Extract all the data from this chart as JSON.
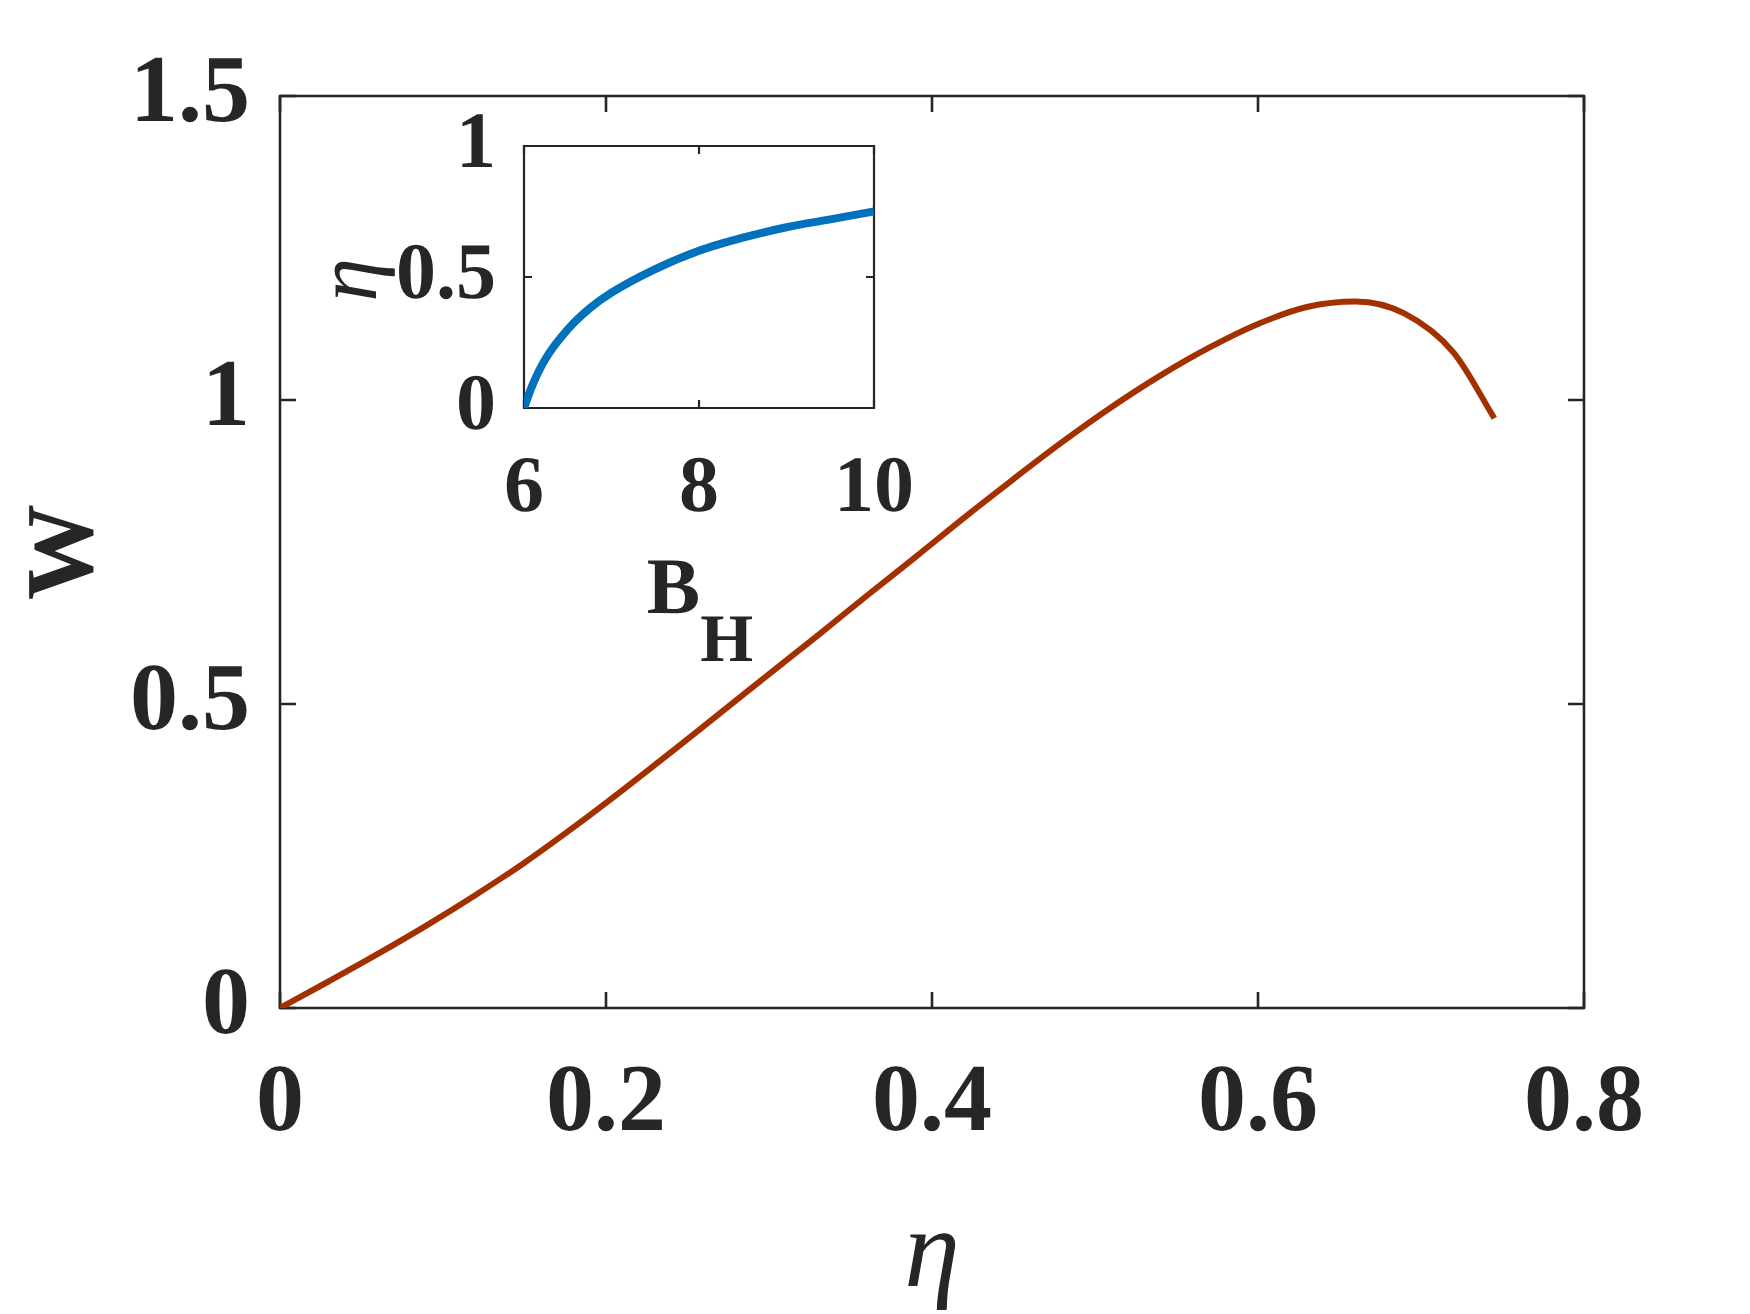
{
  "chart_data": [
    {
      "type": "line",
      "xlabel": "η",
      "ylabel": "W",
      "xlim": [
        0,
        0.8
      ],
      "ylim": [
        0,
        1.5
      ],
      "xticks": [
        0,
        0.2,
        0.4,
        0.6,
        0.8
      ],
      "yticks": [
        0,
        0.5,
        1,
        1.5
      ],
      "color": "#a33100",
      "x": [
        0,
        0.03,
        0.06,
        0.09,
        0.12,
        0.15,
        0.18,
        0.21,
        0.24,
        0.27,
        0.3,
        0.33,
        0.36,
        0.39,
        0.42,
        0.45,
        0.48,
        0.51,
        0.54,
        0.57,
        0.6,
        0.63,
        0.66,
        0.69,
        0.72,
        0.745
      ],
      "values": [
        0,
        0.044,
        0.089,
        0.136,
        0.186,
        0.239,
        0.297,
        0.358,
        0.421,
        0.485,
        0.549,
        0.613,
        0.678,
        0.742,
        0.807,
        0.87,
        0.931,
        0.988,
        1.04,
        1.086,
        1.125,
        1.153,
        1.162,
        1.142,
        1.078,
        0.97
      ]
    },
    {
      "type": "line",
      "xlabel": "B$_{H}$",
      "ylabel": "η",
      "xlim": [
        6,
        10
      ],
      "ylim": [
        0,
        1
      ],
      "xticks": [
        6,
        8,
        10
      ],
      "yticks": [
        0,
        0.5,
        1
      ],
      "color": "#0072bd",
      "x": [
        6,
        6.1,
        6.25,
        6.5,
        6.75,
        7,
        7.5,
        8,
        8.5,
        9,
        9.5,
        10
      ],
      "values": [
        0,
        0.09,
        0.19,
        0.3,
        0.38,
        0.44,
        0.53,
        0.6,
        0.65,
        0.69,
        0.72,
        0.75
      ]
    }
  ]
}
